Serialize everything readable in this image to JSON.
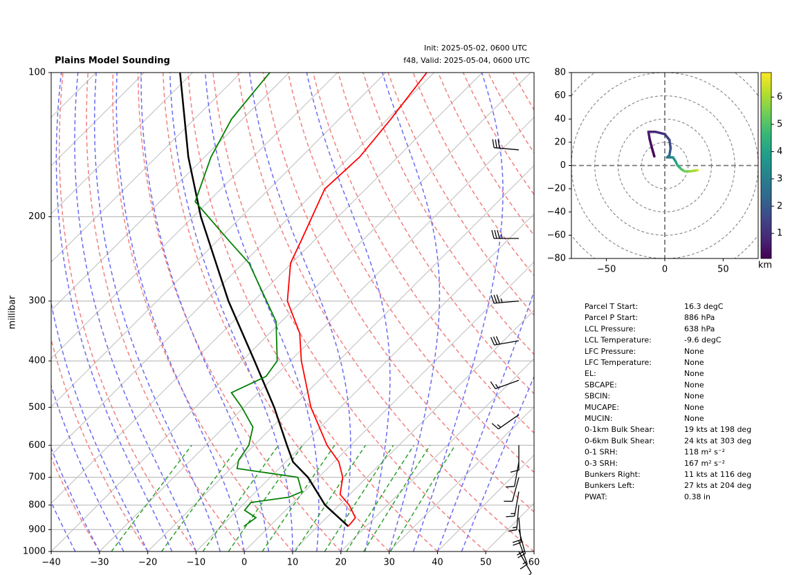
{
  "chart_data": [
    {
      "type": "skewt",
      "title": "Plains Model Sounding",
      "subtitle": [
        "Init: 2025-05-02, 0600 UTC",
        "f48, Valid: 2025-05-04, 0600 UTC"
      ],
      "ylabel": "millibar",
      "xlim": [
        -40,
        60
      ],
      "xticks": [
        {
          "value": -40,
          "label": "−40"
        },
        {
          "value": -30,
          "label": "−30"
        },
        {
          "value": -20,
          "label": "−20"
        },
        {
          "value": -10,
          "label": "−10"
        },
        0,
        10,
        20,
        30,
        40,
        50,
        60
      ],
      "ylim": [
        1000,
        100
      ],
      "yticks": [
        1000,
        900,
        800,
        700,
        600,
        500,
        400,
        300,
        200,
        100
      ],
      "log_y": true,
      "grid": true,
      "temperature": {
        "color": "#ff0000",
        "pressure": [
          886,
          850,
          800,
          760,
          700,
          650,
          600,
          500,
          400,
          350,
          300,
          250,
          225,
          175,
          150,
          125,
          100
        ],
        "values": [
          16.3,
          16.0,
          12.1,
          8.0,
          5.0,
          1.0,
          -4.9,
          -16.1,
          -27.7,
          -33.8,
          -43.0,
          -50.2,
          -52.6,
          -58.5,
          -57.9,
          -59.3,
          -61.5
        ]
      },
      "dewpoint": {
        "color": "#008000",
        "pressure": [
          886,
          850,
          820,
          790,
          770,
          750,
          700,
          671,
          645,
          600,
          550,
          500,
          466,
          431,
          400,
          331,
          300,
          250,
          225,
          186,
          150,
          125,
          110,
          100
        ],
        "values": [
          -5.3,
          -4.6,
          -8.5,
          -8.8,
          -2.0,
          -0.5,
          -4.3,
          -18.7,
          -20.1,
          -21.1,
          -24.0,
          -30.4,
          -35.6,
          -31.8,
          -32.7,
          -41.1,
          -47.3,
          -58.8,
          -67.4,
          -82.7,
          -88.7,
          -92.3,
          -93.3,
          -94.0
        ]
      },
      "parcel": {
        "color": "#000000",
        "pressure": [
          886,
          800,
          700,
          650,
          600,
          500,
          400,
          300,
          200,
          150,
          100
        ],
        "values": [
          16.3,
          7.1,
          -2.2,
          -8.5,
          -13.2,
          -23.7,
          -37.4,
          -55.2,
          -78.4,
          -93.4,
          -112.6
        ]
      },
      "wind": {
        "color": "#000000",
        "pressure": [
          145,
          222,
          300,
          363,
          439,
          518,
          600,
          650,
          700,
          750,
          800,
          850,
          900,
          950,
          1000
        ],
        "speed": [
          30,
          35,
          35,
          30,
          15,
          15,
          10,
          10,
          10,
          15,
          15,
          20,
          20,
          15,
          10
        ],
        "direction": [
          275,
          270,
          265,
          260,
          250,
          235,
          180,
          190,
          195,
          190,
          185,
          175,
          165,
          160,
          150
        ]
      }
    },
    {
      "type": "hodograph",
      "xlim": [
        -80,
        80
      ],
      "ylim": [
        -80,
        80
      ],
      "xticks": [
        {
          "value": -50,
          "label": "−50"
        },
        0,
        50
      ],
      "yticks": [
        {
          "value": -80,
          "label": "−80"
        },
        {
          "value": -60,
          "label": "−60"
        },
        {
          "value": -40,
          "label": "−40"
        },
        {
          "value": -20,
          "label": "−20"
        },
        0,
        20,
        40,
        60,
        80
      ],
      "rings": [
        20,
        40,
        60,
        80,
        100,
        120
      ],
      "u": [
        -9,
        -11,
        -13,
        -14,
        -8,
        0,
        4,
        5,
        4,
        2,
        7,
        9,
        11,
        14,
        17,
        22,
        28
      ],
      "v": [
        8,
        15,
        23,
        29,
        29,
        27,
        22,
        15,
        9,
        7,
        7,
        4,
        0,
        -3,
        -5,
        -5,
        -4
      ],
      "height_km": [
        0.1,
        0.3,
        0.5,
        0.8,
        1.0,
        1.3,
        1.6,
        2.0,
        2.5,
        3.0,
        3.5,
        4.0,
        4.5,
        5.0,
        5.5,
        6.0,
        6.5
      ],
      "clim": [
        0.08,
        6.9
      ],
      "colorbar_ticks": [
        1,
        2,
        3,
        4,
        5,
        6
      ],
      "colorbar_label": "km"
    }
  ],
  "parameters": [
    {
      "label": "Parcel T Start:",
      "value": "16.3 degC"
    },
    {
      "label": "Parcel P Start:",
      "value": "886 hPa"
    },
    {
      "label": "LCL Pressure:",
      "value": "638 hPa"
    },
    {
      "label": "LCL Temperature:",
      "value": "-9.6 degC"
    },
    {
      "label": "LFC Pressure:",
      "value": "None"
    },
    {
      "label": "LFC Temperature:",
      "value": "None"
    },
    {
      "label": "EL:",
      "value": "None"
    },
    {
      "label": "SBCAPE:",
      "value": "None"
    },
    {
      "label": "SBCIN:",
      "value": "None"
    },
    {
      "label": "MUCAPE:",
      "value": "None"
    },
    {
      "label": "MUCIN:",
      "value": "None"
    },
    {
      "label": "0-1km Bulk Shear:",
      "value": "19 kts at 198 deg"
    },
    {
      "label": "0-6km Bulk Shear:",
      "value": "24 kts at 303 deg"
    },
    {
      "label": "0-1 SRH:",
      "value": "118 m² s⁻²"
    },
    {
      "label": "0-3 SRH:",
      "value": "167 m² s⁻²"
    },
    {
      "label": "Bunkers Right:",
      "value": "11 kts at 116 deg"
    },
    {
      "label": "Bunkers Left:",
      "value": "27 kts at 204 deg"
    },
    {
      "label": "PWAT:",
      "value": "0.38 in"
    }
  ]
}
